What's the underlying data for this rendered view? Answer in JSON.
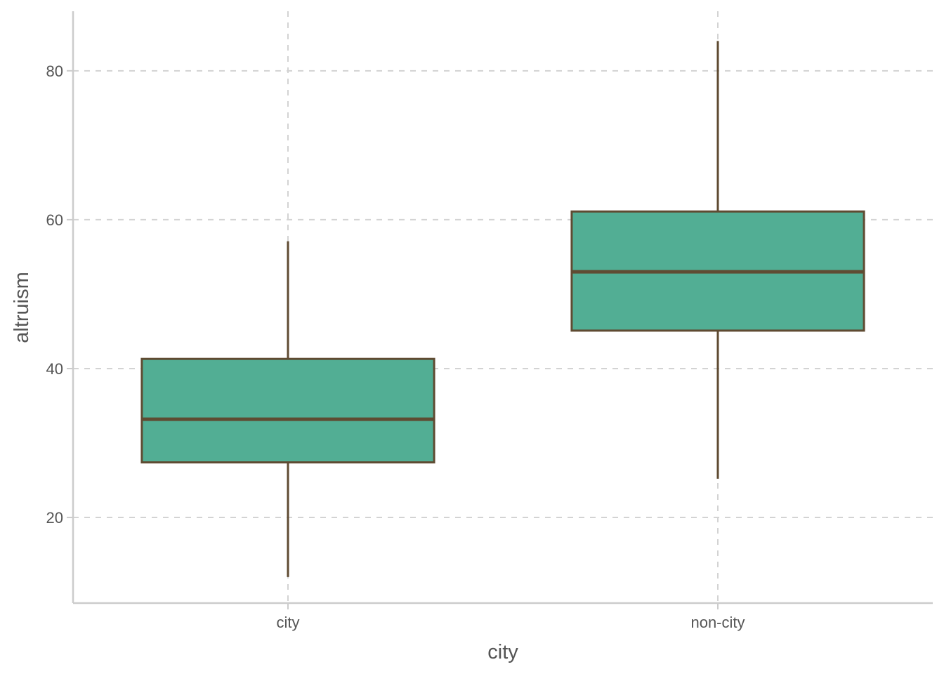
{
  "chart_data": {
    "type": "box",
    "title": "",
    "xlabel": "city",
    "ylabel": "altruism",
    "categories": [
      "city",
      "non-city"
    ],
    "boxes": [
      {
        "category": "city",
        "whisker_low": 12,
        "q1": 27.4,
        "median": 33.2,
        "q3": 41.3,
        "whisker_high": 57.1
      },
      {
        "category": "non-city",
        "whisker_low": 25.2,
        "q1": 45.1,
        "median": 53,
        "q3": 61.1,
        "whisker_high": 84
      }
    ],
    "yticks": [
      20,
      40,
      60,
      80
    ],
    "ylim": [
      8.5,
      88
    ],
    "grid": true,
    "legend": "none",
    "colors": {
      "box_fill": "#52ae94",
      "box_stroke": "#5f4b32",
      "grid": "#d3d3d3",
      "axis": "#cccccc",
      "text": "#555555"
    }
  }
}
